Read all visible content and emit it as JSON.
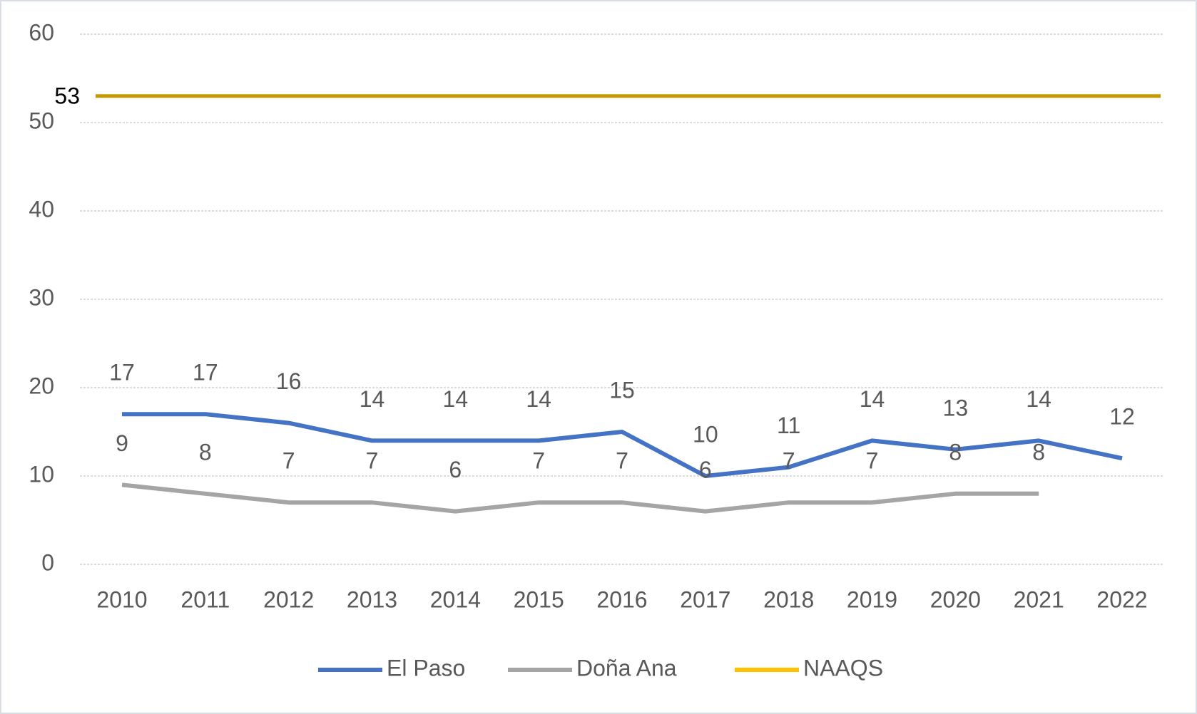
{
  "chart_data": {
    "type": "line",
    "categories": [
      "2010",
      "2011",
      "2012",
      "2013",
      "2014",
      "2015",
      "2016",
      "2017",
      "2018",
      "2019",
      "2020",
      "2021",
      "2022"
    ],
    "series": [
      {
        "name": "El Paso",
        "color": "#4472c4",
        "values": [
          17,
          17,
          16,
          14,
          14,
          14,
          15,
          10,
          11,
          14,
          13,
          14,
          12
        ]
      },
      {
        "name": "Doña Ana",
        "color": "#a5a5a5",
        "values": [
          9,
          8,
          7,
          7,
          6,
          7,
          7,
          6,
          7,
          7,
          8,
          8,
          null
        ]
      },
      {
        "name": "NAAQS",
        "color": "#c49a00",
        "values": [
          53,
          53,
          53,
          53,
          53,
          53,
          53,
          53,
          53,
          53,
          53,
          53,
          53
        ]
      }
    ],
    "ylim": [
      0,
      60
    ],
    "yticks": [
      0,
      10,
      20,
      30,
      40,
      50,
      60
    ],
    "grid": true,
    "legend": "bottom"
  }
}
